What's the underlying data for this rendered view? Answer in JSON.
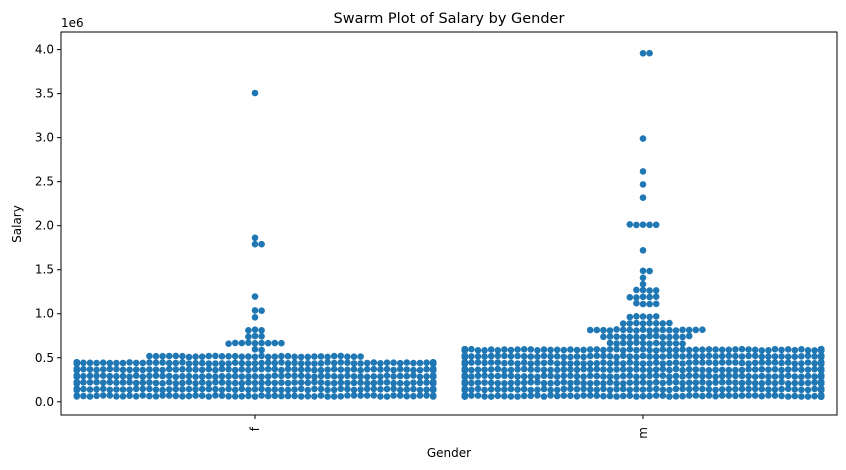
{
  "chart_data": {
    "type": "scatter",
    "subtype": "swarm",
    "title": "Swarm Plot of Salary by Gender",
    "xlabel": "Gender",
    "ylabel": "Salary",
    "y_offset_label": "1e6",
    "categories": [
      "f",
      "m"
    ],
    "ylim": [
      -0.15,
      4.2
    ],
    "yticks": [
      "0.0",
      "0.5",
      "1.0",
      "1.5",
      "2.0",
      "2.5",
      "3.0",
      "3.5",
      "4.0"
    ],
    "tick_label_rotation_x": 90,
    "grid": false,
    "legend": "none",
    "marker_color": "#1f77b4",
    "series": [
      {
        "category": "f",
        "high_values": [
          3.5,
          1.85,
          1.8,
          1.8,
          1.2,
          1.05,
          1.03,
          0.93,
          0.82,
          0.82,
          0.8,
          0.75,
          0.73,
          0.72,
          0.7,
          0.7,
          0.69,
          0.69,
          0.68,
          0.67,
          0.65,
          0.64,
          0.63,
          0.62,
          0.6
        ],
        "bulk": {
          "min": 0.05,
          "max": 0.5,
          "count": 620
        }
      },
      {
        "category": "m",
        "high_values": [
          4.0,
          4.0,
          3.0,
          2.6,
          2.5,
          2.3,
          2.05,
          2.02,
          2.0,
          2.0,
          2.0,
          1.75,
          1.5,
          1.5,
          1.4,
          1.33,
          1.3,
          1.3,
          1.29,
          1.28,
          1.2,
          1.2,
          1.2,
          1.2,
          1.2,
          1.1,
          1.1,
          1.1,
          1.09,
          1.0,
          1.0,
          1.0,
          0.97,
          0.95,
          0.92,
          0.9,
          0.9,
          0.9,
          0.88,
          0.88,
          0.87,
          0.86,
          0.85,
          0.85,
          0.84,
          0.83,
          0.82,
          0.81,
          0.8,
          0.8,
          0.8,
          0.8,
          0.8,
          0.8,
          0.8,
          0.8,
          0.8,
          0.8,
          0.78,
          0.78,
          0.77,
          0.76,
          0.75,
          0.75,
          0.74,
          0.73,
          0.72,
          0.72,
          0.72,
          0.72,
          0.72,
          0.72,
          0.72,
          0.71,
          0.7,
          0.7,
          0.7,
          0.7,
          0.7,
          0.69,
          0.68,
          0.67,
          0.66,
          0.65,
          0.65,
          0.65
        ],
        "bulk": {
          "min": 0.05,
          "max": 0.62,
          "count": 1300
        }
      }
    ]
  }
}
